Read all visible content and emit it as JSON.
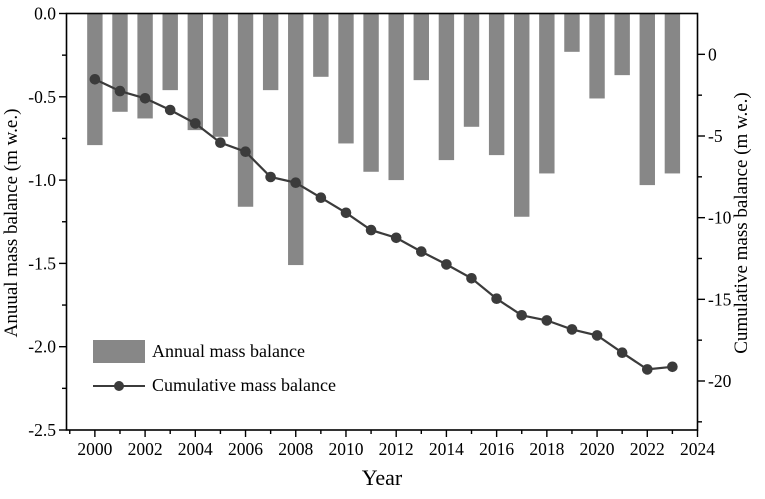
{
  "colors": {
    "bar": "#878787",
    "line": "#3b3b3b",
    "axis": "#000000",
    "background": "#ffffff"
  },
  "chart_data": {
    "type": "bar",
    "combo_types": [
      "bar",
      "line"
    ],
    "title": "",
    "xlabel": "Year",
    "ylabel_left": "Anuual mass balance (m w.e.)",
    "ylabel_right": "Cumulative mass balance (m w.e.)",
    "grid": false,
    "legend_position": "lower-left-inside",
    "xlim": [
      1998.87,
      2024.0
    ],
    "ylim_left": [
      -2.5,
      0
    ],
    "ylim_right": [
      -23,
      2.5
    ],
    "x": [
      2000,
      2001,
      2002,
      2003,
      2004,
      2005,
      2006,
      2007,
      2008,
      2009,
      2010,
      2011,
      2012,
      2013,
      2014,
      2015,
      2016,
      2017,
      2018,
      2019,
      2020,
      2021,
      2022,
      2023
    ],
    "series": [
      {
        "name": "Annual mass balance",
        "type": "bar",
        "axis": "left",
        "values": [
          -0.79,
          -0.59,
          -0.63,
          -0.46,
          -0.7,
          -0.74,
          -1.16,
          -0.46,
          -1.51,
          -0.38,
          -0.78,
          -0.95,
          -1.0,
          -0.4,
          -0.88,
          -0.68,
          -0.85,
          -1.22,
          -0.96,
          -0.23,
          -0.51,
          -0.37,
          -1.03,
          -0.96
        ]
      },
      {
        "name": "Cumulative mass balance",
        "type": "line",
        "axis": "right",
        "values": [
          -1.53,
          -2.25,
          -2.69,
          -3.41,
          -4.23,
          -5.41,
          -5.96,
          -7.51,
          -7.86,
          -8.78,
          -9.7,
          -10.76,
          -11.23,
          -12.08,
          -12.86,
          -13.71,
          -14.96,
          -15.98,
          -16.29,
          -16.84,
          -17.21,
          -18.27,
          -19.29,
          -19.13
        ]
      }
    ],
    "x_major_ticks": [
      2000,
      2002,
      2004,
      2006,
      2008,
      2010,
      2012,
      2014,
      2016,
      2018,
      2020,
      2022,
      2024
    ],
    "x_tick_labels": [
      "2000",
      "2002",
      "2004",
      "2006",
      "2008",
      "2010",
      "2012",
      "2014",
      "2016",
      "2018",
      "2020",
      "2022",
      "2024"
    ],
    "x_minor_ticks": [
      1999,
      2001,
      2003,
      2005,
      2007,
      2009,
      2011,
      2013,
      2015,
      2017,
      2019,
      2021,
      2023
    ],
    "y_left_ticks": [
      0,
      -0.5,
      -1,
      -1.5,
      -2,
      -2.5
    ],
    "y_left_tick_labels": [
      "0.0",
      "-0.5",
      "-1.0",
      "-1.5",
      "-2.0",
      "-2.5"
    ],
    "y_left_minor_ticks": [
      -0.25,
      -0.75,
      -1.25,
      -1.75,
      -2.25
    ],
    "y_right_ticks": [
      0,
      -5,
      -10,
      -15,
      -20
    ],
    "y_right_tick_labels": [
      "0",
      "-5",
      "-10",
      "-15",
      "-20"
    ],
    "y_right_minor_ticks": [
      -2.5,
      -7.5,
      -12.5,
      -17.5,
      -22.5
    ]
  }
}
